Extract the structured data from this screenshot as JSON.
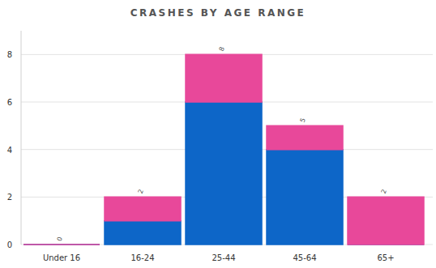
{
  "chart_data": {
    "type": "bar",
    "title": "CRASHES BY AGE RANGE",
    "categories": [
      "Under 16",
      "16-24",
      "25-44",
      "45-64",
      "65+"
    ],
    "series": [
      {
        "color": "#0d66c8",
        "values": [
          0,
          1,
          6,
          4,
          0
        ]
      },
      {
        "color": "#e8489a",
        "values": [
          0,
          1,
          2,
          1,
          2
        ]
      }
    ],
    "totals": [
      0,
      2,
      8,
      5,
      2
    ],
    "stacked": true,
    "ylim": [
      0,
      9
    ],
    "yticks": [
      0,
      2,
      4,
      6,
      8
    ],
    "grid": true
  }
}
